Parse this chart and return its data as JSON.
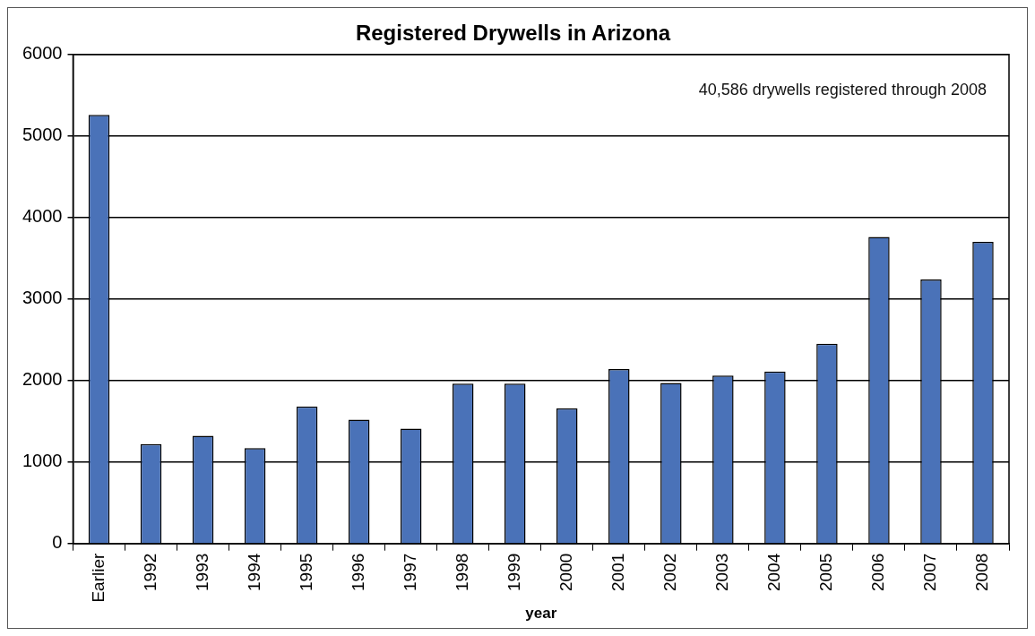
{
  "chart_data": {
    "type": "bar",
    "title": "Registered Drywells in Arizona",
    "xlabel": "year",
    "categories": [
      "Earlier",
      "1992",
      "1993",
      "1994",
      "1995",
      "1996",
      "1997",
      "1998",
      "1999",
      "2000",
      "2001",
      "2002",
      "2003",
      "2004",
      "2005",
      "2006",
      "2007",
      "2008"
    ],
    "values": [
      5260,
      1220,
      1320,
      1170,
      1680,
      1520,
      1410,
      1960,
      1960,
      1660,
      2140,
      1970,
      2060,
      2110,
      2450,
      3760,
      3240,
      3700
    ],
    "color": "#4a72b8",
    "ylim": [
      0,
      6000
    ],
    "yticks": [
      0,
      1000,
      2000,
      3000,
      4000,
      5000,
      6000
    ],
    "grid": "y",
    "annotations": [
      "40,586 drywells registered through 2008"
    ]
  }
}
